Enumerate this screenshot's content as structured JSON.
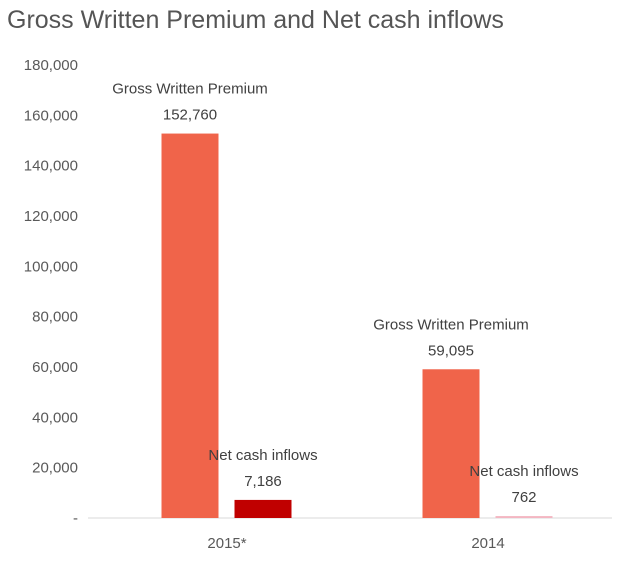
{
  "chart_data": {
    "type": "bar",
    "title": "Gross Written Premium and Net cash inflows",
    "categories": [
      "2015*",
      "2014"
    ],
    "series": [
      {
        "name": "Gross Written Premium",
        "values": [
          152760,
          59095
        ],
        "labels": [
          "152,760",
          "59,095"
        ],
        "color": "#F0644A"
      },
      {
        "name": "Net cash inflows",
        "values": [
          7186,
          762
        ],
        "labels": [
          "7,186",
          "762"
        ],
        "colors": [
          "#C00000",
          "#F4B6C2"
        ]
      }
    ],
    "y_ticks": [
      "-",
      "20,000",
      "40,000",
      "60,000",
      "80,000",
      "100,000",
      "120,000",
      "140,000",
      "160,000",
      "180,000"
    ],
    "ylim": [
      0,
      180000
    ],
    "grid": false,
    "legend": "none"
  }
}
